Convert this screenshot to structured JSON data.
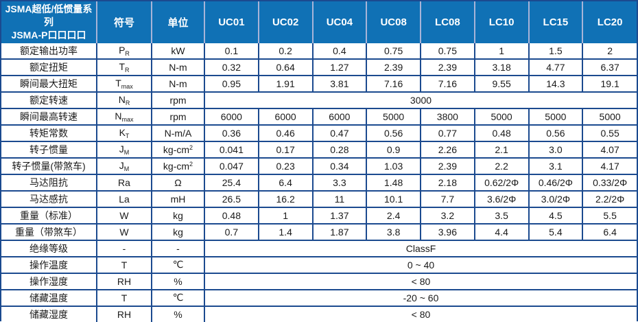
{
  "table": {
    "header": {
      "series_title_line1": "JSMA超低/低惯量系列",
      "series_title_line2": "JSMA-P口口口口",
      "symbol_col": "符号",
      "unit_col": "单位",
      "models": [
        "UC01",
        "UC02",
        "UC04",
        "UC08",
        "LC08",
        "LC10",
        "LC15",
        "LC20"
      ]
    },
    "colors": {
      "header_bg": "#1071b5",
      "border_navy": "#1b4a8f",
      "header_divider": "#a8b4d8",
      "header_text": "#ffffff",
      "body_text": "#1a1a1a"
    },
    "rows": [
      {
        "label": "额定输出功率",
        "sym": "P",
        "sym_sub": "R",
        "unit": "kW",
        "values": [
          "0.1",
          "0.2",
          "0.4",
          "0.75",
          "0.75",
          "1",
          "1.5",
          "2"
        ]
      },
      {
        "label": "额定扭矩",
        "sym": "T",
        "sym_sub": "R",
        "unit": "N-m",
        "values": [
          "0.32",
          "0.64",
          "1.27",
          "2.39",
          "2.39",
          "3.18",
          "4.77",
          "6.37"
        ]
      },
      {
        "label": "瞬间最大扭矩",
        "sym": "T",
        "sym_sub": "max",
        "unit": "N-m",
        "values": [
          "0.95",
          "1.91",
          "3.81",
          "7.16",
          "7.16",
          "9.55",
          "14.3",
          "19.1"
        ]
      },
      {
        "label": "额定转速",
        "sym": "N",
        "sym_sub": "R",
        "unit": "rpm",
        "span_value": "3000"
      },
      {
        "label": "瞬间最高转速",
        "sym": "N",
        "sym_sub": "max",
        "unit": "rpm",
        "values": [
          "6000",
          "6000",
          "6000",
          "5000",
          "3800",
          "5000",
          "5000",
          "5000"
        ]
      },
      {
        "label": "转矩常数",
        "sym": "K",
        "sym_sub": "T",
        "unit": "N-m/A",
        "values": [
          "0.36",
          "0.46",
          "0.47",
          "0.56",
          "0.77",
          "0.48",
          "0.56",
          "0.55"
        ]
      },
      {
        "label": "转子惯量",
        "sym": "J",
        "sym_sub": "M",
        "unit": "kg-cm",
        "unit_sup": "2",
        "values": [
          "0.041",
          "0.17",
          "0.28",
          "0.9",
          "2.26",
          "2.1",
          "3.0",
          "4.07"
        ]
      },
      {
        "label": "转子惯量(带煞车)",
        "sym": "J",
        "sym_sub": "M",
        "unit": "kg-cm",
        "unit_sup": "2",
        "values": [
          "0.047",
          "0.23",
          "0.34",
          "1.03",
          "2.39",
          "2.2",
          "3.1",
          "4.17"
        ]
      },
      {
        "label": "马达阻抗",
        "sym": "Ra",
        "unit": "Ω",
        "values": [
          "25.4",
          "6.4",
          "3.3",
          "1.48",
          "2.18",
          "0.62/2Φ",
          "0.46/2Φ",
          "0.33/2Φ"
        ]
      },
      {
        "label": "马达感抗",
        "sym": "La",
        "unit": "mH",
        "values": [
          "26.5",
          "16.2",
          "11",
          "10.1",
          "7.7",
          "3.6/2Φ",
          "3.0/2Φ",
          "2.2/2Φ"
        ]
      },
      {
        "label": "重量（标准）",
        "sym": "W",
        "unit": "kg",
        "values": [
          "0.48",
          "1",
          "1.37",
          "2.4",
          "3.2",
          "3.5",
          "4.5",
          "5.5"
        ]
      },
      {
        "label": "重量（带煞车）",
        "sym": "W",
        "unit": "kg",
        "values": [
          "0.7",
          "1.4",
          "1.87",
          "3.8",
          "3.96",
          "4.4",
          "5.4",
          "6.4"
        ]
      },
      {
        "label": "绝缘等级",
        "sym": "-",
        "unit": "-",
        "span_value": "ClassF"
      },
      {
        "label": "操作温度",
        "sym": "T",
        "unit": "℃",
        "span_value": "0 ~ 40"
      },
      {
        "label": "操作湿度",
        "sym": "RH",
        "unit": "%",
        "span_value": "< 80"
      },
      {
        "label": "储藏温度",
        "sym": "T",
        "unit": "℃",
        "span_value": "-20 ~ 60"
      },
      {
        "label": "储藏湿度",
        "sym": "RH",
        "unit": "%",
        "span_value": "< 80"
      }
    ]
  }
}
